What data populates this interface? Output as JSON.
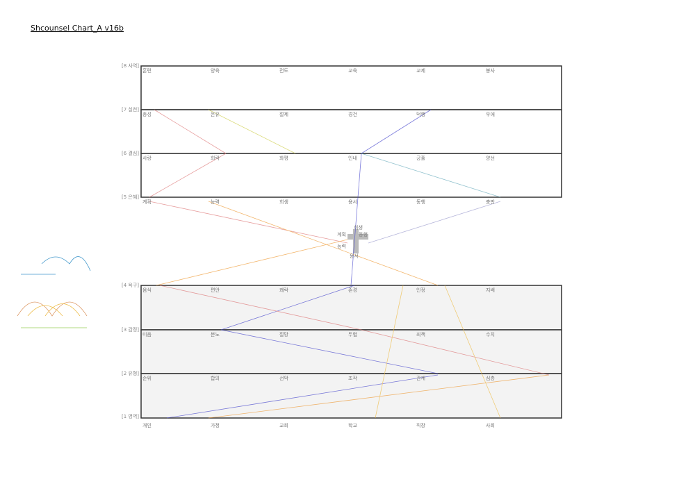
{
  "header": {
    "title": "Shcounsel Chart_A v16b"
  },
  "rows": [
    {
      "label": "[8 사역]",
      "cells": [
        "훈련",
        "양육",
        "전도",
        "교육",
        "교제",
        "봉사"
      ]
    },
    {
      "label": "[7 실천]",
      "cells": [
        "충성",
        "온유",
        "절제",
        "경건",
        "덕행",
        "우애"
      ]
    },
    {
      "label": "[6 결심]",
      "cells": [
        "사랑",
        "희락",
        "화평",
        "인내",
        "긍휼",
        "양선"
      ]
    },
    {
      "label": "[5 은혜]",
      "cells": [
        "계획",
        "능력",
        "희생",
        "용서",
        "동행",
        "충만"
      ]
    },
    {
      "label": "[4 욕구]",
      "cells": [
        "음식",
        "편안",
        "쾌락",
        "존경",
        "인정",
        "지배"
      ]
    },
    {
      "label": "[3 감정]",
      "cells": [
        "미움",
        "분노",
        "절망",
        "두렵",
        "죄책",
        "수치"
      ]
    },
    {
      "label": "[2 유형]",
      "cells": [
        "순위",
        "합의",
        "선악",
        "조작",
        "관계",
        "심층"
      ]
    },
    {
      "label": "[1 영역]",
      "cells": [
        "개인",
        "가정",
        "교회",
        "학교",
        "직장",
        "사회"
      ]
    }
  ],
  "center": {
    "labels": [
      "희생",
      "계획",
      "동행",
      "능력",
      "용서"
    ]
  }
}
